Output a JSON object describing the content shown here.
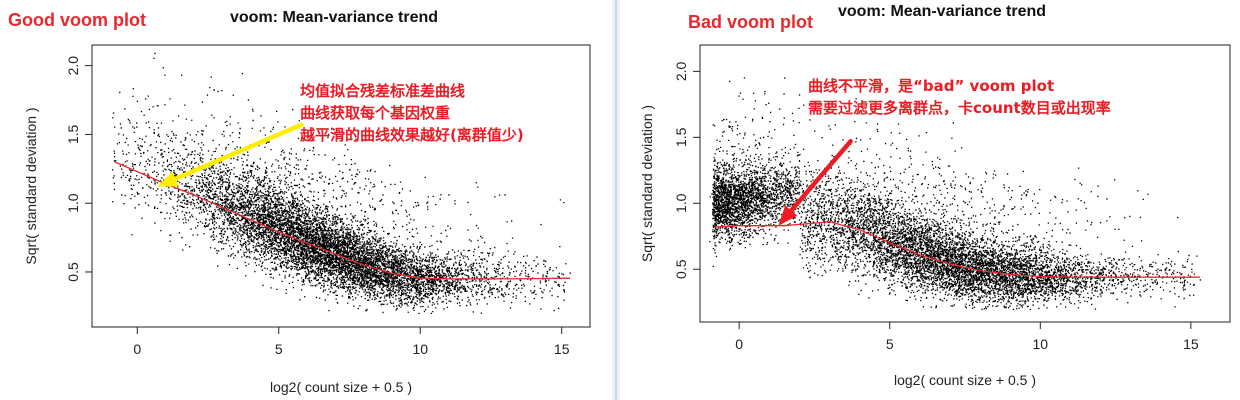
{
  "panels": [
    {
      "label": "Good voom plot",
      "title": "voom: Mean-variance trend",
      "annotation_lines": [
        "均值拟合残差标准差曲线",
        "曲线获取每个基因权重",
        "越平滑的曲线效果越好(离群值少)"
      ]
    },
    {
      "label": "Bad voom plot",
      "title": "voom: Mean-variance trend",
      "annotation_lines": [
        "曲线不平滑，是“bad” voom plot",
        "需要过滤更多离群点，卡count数目或出现率"
      ]
    }
  ],
  "chart_data": [
    {
      "type": "scatter",
      "title": "voom: Mean-variance trend",
      "xlabel": "log2( count size + 0.5 )",
      "ylabel": "Sqrt( standard deviation )",
      "xlim": [
        -1.6,
        16.0
      ],
      "ylim": [
        0.1,
        2.15
      ],
      "xticks": [
        0,
        5,
        10,
        15
      ],
      "yticks": [
        0.5,
        1.0,
        1.5,
        2.0
      ],
      "yticklabels": [
        "0.5",
        "1.0",
        "1.5",
        "2.0"
      ],
      "grid": false,
      "point_color": "#000000",
      "trend_color": "#e8292e",
      "trend": {
        "x": [
          -0.8,
          0,
          1,
          2,
          3,
          4,
          5,
          6,
          7,
          8,
          9,
          10,
          11,
          12,
          13,
          14,
          15.3
        ],
        "y": [
          1.3,
          1.23,
          1.14,
          1.06,
          0.97,
          0.88,
          0.79,
          0.71,
          0.63,
          0.55,
          0.49,
          0.455,
          0.45,
          0.45,
          0.45,
          0.452,
          0.455
        ]
      },
      "points_model": {
        "n": 9000,
        "x_range": [
          -1,
          15
        ],
        "y_range": [
          0.2,
          2.1
        ],
        "seed": 7
      },
      "arrow": {
        "from": [
          5.8,
          1.57
        ],
        "to": [
          0.7,
          1.12
        ],
        "color": "#ffee00"
      }
    },
    {
      "type": "scatter",
      "title": "voom: Mean-variance trend",
      "xlabel": "log2( count size + 0.5 )",
      "ylabel": "Sqrt( standard deviation )",
      "xlim": [
        -1.3,
        16.3
      ],
      "ylim": [
        0.1,
        2.2
      ],
      "xticks": [
        0,
        5,
        10,
        15
      ],
      "yticks": [
        0.5,
        1.0,
        1.5,
        2.0
      ],
      "yticklabels": [
        "0.5",
        "1.0",
        "1.5",
        "2.0"
      ],
      "grid": false,
      "point_color": "#000000",
      "trend_color": "#e8292e",
      "trend": {
        "x": [
          -0.8,
          0,
          1,
          1.5,
          2,
          3,
          4,
          5,
          6,
          7,
          8,
          9,
          10,
          11,
          12,
          13,
          14,
          15.3
        ],
        "y": [
          0.82,
          0.83,
          0.83,
          0.83,
          0.84,
          0.86,
          0.8,
          0.7,
          0.61,
          0.54,
          0.49,
          0.46,
          0.445,
          0.44,
          0.44,
          0.44,
          0.44,
          0.44
        ]
      },
      "points_model": {
        "n": 10000,
        "x_range": [
          -1,
          15
        ],
        "y_range": [
          0.2,
          2.1
        ],
        "seed": 19
      },
      "arrow": {
        "from": [
          3.7,
          1.47
        ],
        "to": [
          1.3,
          0.83
        ],
        "color": "#ec1c24"
      }
    }
  ]
}
